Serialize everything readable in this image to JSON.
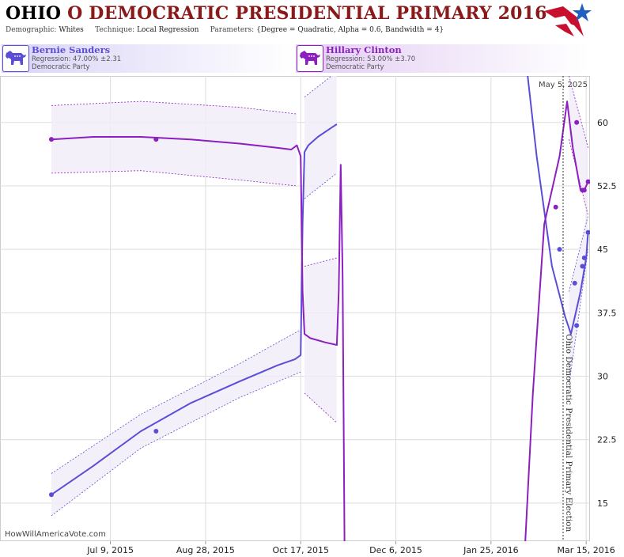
{
  "header": {
    "title_state": "OHIO",
    "title_rest": "O DEMOCRATIC PRESIDENTIAL PRIMARY 2016",
    "demographic_label": "Demographic:",
    "demographic_value": "Whites",
    "technique_label": "Technique:",
    "technique_value": "Local Regression",
    "parameters_label": "Parameters:",
    "parameters_value": "{Degree = Quadratic, Alpha = 0.6, Bandwidth = 4}"
  },
  "candidates": [
    {
      "name": "Bernie Sanders",
      "regression": "Regression: 47.00% ±2.31",
      "party": "Democratic Party",
      "color": "#5b4ed6"
    },
    {
      "name": "Hillary Clinton",
      "regression": "Regression: 53.00% ±3.70",
      "party": "Democratic Party",
      "color": "#8b1fc0"
    }
  ],
  "watermark": "HowWillAmericaVote.com",
  "current_date": "May 5, 2025",
  "election_label": "Ohio Democratic Presidential Primary Election",
  "colors": {
    "sanders": "#5b4ed6",
    "clinton": "#8b1fc0",
    "band": "#f1ecf9",
    "grid": "#dcdcdc",
    "logo_red": "#c8102e",
    "logo_blue": "#1f5fbf"
  },
  "chart_data": {
    "type": "line",
    "x_axis": {
      "type": "date",
      "ticks": [
        "Jul 9, 2015",
        "Aug 28, 2015",
        "Oct 17, 2015",
        "Dec 6, 2015",
        "Jan 25, 2016",
        "Mar 15, 2016"
      ],
      "range": [
        "2015-05-12",
        "2016-03-17"
      ]
    },
    "y_axis": {
      "ticks": [
        "15",
        "22.5",
        "30",
        "37.5",
        "45",
        "52.5",
        "60"
      ],
      "range": [
        10.5,
        65.5
      ],
      "position": "right"
    },
    "grid": true,
    "series": [
      {
        "name": "Bernie Sanders",
        "segments": [
          [
            [
              "2015-06-08",
              16.0
            ],
            [
              "2015-06-30",
              19.4
            ],
            [
              "2015-07-25",
              23.5
            ],
            [
              "2015-08-20",
              26.8
            ],
            [
              "2015-09-15",
              29.4
            ],
            [
              "2015-10-05",
              31.3
            ],
            [
              "2015-10-14",
              32.0
            ],
            [
              "2015-10-17",
              32.5
            ],
            [
              "2015-10-18",
              48
            ],
            [
              "2015-10-19",
              56.5
            ],
            [
              "2015-10-21",
              57.3
            ],
            [
              "2015-10-26",
              58.3
            ],
            [
              "2015-11-03",
              59.5
            ],
            [
              "2015-11-05",
              59.8
            ]
          ],
          [
            [
              "2016-02-13",
              66
            ],
            [
              "2016-02-18",
              56
            ],
            [
              "2016-02-26",
              43
            ],
            [
              "2016-03-04",
              37
            ],
            [
              "2016-03-07",
              35
            ],
            [
              "2016-03-10",
              38
            ],
            [
              "2016-03-12",
              40
            ],
            [
              "2016-03-15",
              44
            ],
            [
              "2016-03-16",
              47.0
            ]
          ]
        ],
        "band_upper": [
          [
            [
              "2015-06-08",
              18.5
            ],
            [
              "2015-07-25",
              25.5
            ],
            [
              "2015-09-15",
              31.5
            ],
            [
              "2015-10-17",
              35.5
            ]
          ],
          [
            [
              "2015-10-19",
              63
            ],
            [
              "2015-11-05",
              66
            ]
          ],
          [
            [
              "2016-03-06",
              40
            ],
            [
              "2016-03-16",
              49
            ]
          ]
        ],
        "band_lower": [
          [
            [
              "2015-06-08",
              13.5
            ],
            [
              "2015-07-25",
              21.5
            ],
            [
              "2015-09-15",
              27.5
            ],
            [
              "2015-10-17",
              30.5
            ]
          ],
          [
            [
              "2015-10-19",
              51
            ],
            [
              "2015-11-05",
              54
            ]
          ],
          [
            [
              "2016-03-06",
              29
            ],
            [
              "2016-03-16",
              45
            ]
          ]
        ],
        "points": [
          [
            "2015-06-08",
            16.0
          ],
          [
            "2015-08-02",
            23.5
          ],
          [
            "2016-03-01",
            45.0
          ],
          [
            "2016-03-09",
            41.0
          ],
          [
            "2016-03-10",
            36.0
          ],
          [
            "2016-03-13",
            43.0
          ],
          [
            "2016-03-14",
            44.0
          ],
          [
            "2016-03-16",
            47.0
          ]
        ]
      },
      {
        "name": "Hillary Clinton",
        "segments": [
          [
            [
              "2015-06-08",
              58.0
            ],
            [
              "2015-06-30",
              58.3
            ],
            [
              "2015-07-25",
              58.3
            ],
            [
              "2015-08-20",
              58.0
            ],
            [
              "2015-09-15",
              57.5
            ],
            [
              "2015-10-05",
              57.0
            ],
            [
              "2015-10-12",
              56.8
            ],
            [
              "2015-10-15",
              57.3
            ],
            [
              "2015-10-17",
              56.0
            ],
            [
              "2015-10-18",
              40
            ],
            [
              "2015-10-19",
              35.0
            ],
            [
              "2015-10-22",
              34.5
            ],
            [
              "2015-10-30",
              34.0
            ],
            [
              "2015-11-05",
              33.7
            ],
            [
              "2015-11-06",
              40
            ],
            [
              "2015-11-07",
              55
            ],
            [
              "2015-11-08",
              42
            ],
            [
              "2015-11-09",
              10.5
            ]
          ],
          [
            [
              "2016-02-12",
              10.5
            ],
            [
              "2016-02-16",
              28
            ],
            [
              "2016-02-22",
              48
            ],
            [
              "2016-03-01",
              56
            ],
            [
              "2016-03-05",
              62.5
            ],
            [
              "2016-03-08",
              57
            ],
            [
              "2016-03-12",
              52
            ],
            [
              "2016-03-14",
              52
            ],
            [
              "2016-03-16",
              53.0
            ]
          ]
        ],
        "band_upper": [
          [
            [
              "2015-06-08",
              62
            ],
            [
              "2015-07-25",
              62.5
            ],
            [
              "2015-09-15",
              61.8
            ],
            [
              "2015-10-15",
              61
            ]
          ],
          [
            [
              "2015-10-19",
              43
            ],
            [
              "2015-11-05",
              44
            ]
          ],
          [
            [
              "2016-03-06",
              65.5
            ],
            [
              "2016-03-16",
              57
            ]
          ]
        ],
        "band_lower": [
          [
            [
              "2015-06-08",
              54
            ],
            [
              "2015-07-25",
              54.3
            ],
            [
              "2015-09-15",
              53.2
            ],
            [
              "2015-10-15",
              52.5
            ]
          ],
          [
            [
              "2015-10-19",
              28
            ],
            [
              "2015-11-05",
              24.5
            ]
          ],
          [
            [
              "2016-03-06",
              58
            ],
            [
              "2016-03-16",
              49
            ]
          ]
        ],
        "points": [
          [
            "2015-06-08",
            58.0
          ],
          [
            "2015-08-02",
            58.0
          ],
          [
            "2016-02-28",
            50.0
          ],
          [
            "2016-03-10",
            60.0
          ],
          [
            "2016-03-13",
            52.0
          ],
          [
            "2016-03-14",
            52.0
          ],
          [
            "2016-03-16",
            53.0
          ]
        ]
      }
    ]
  }
}
